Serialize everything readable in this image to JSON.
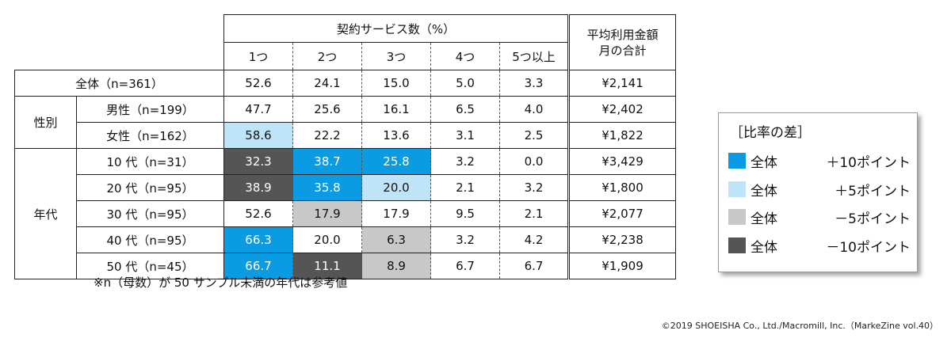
{
  "chart_data": {
    "type": "table",
    "header": {
      "group_title": "契約サービス数（%）",
      "columns": [
        "1つ",
        "2つ",
        "3つ",
        "4つ",
        "5つ以上"
      ],
      "amount_title_1": "平均利用金額",
      "amount_title_2": "月の合計"
    },
    "total_row": {
      "label": "全体（n=361）",
      "values": [
        "52.6",
        "24.1",
        "15.0",
        "5.0",
        "3.3"
      ],
      "amount": "¥2,141"
    },
    "groups": [
      {
        "name": "性別",
        "rows": [
          {
            "label": "男性（n=199）",
            "values": [
              "47.7",
              "25.6",
              "16.1",
              "6.5",
              "4.0"
            ],
            "amount": "¥2,402"
          },
          {
            "label": "女性（n=162）",
            "values": [
              "58.6",
              "22.2",
              "13.6",
              "3.1",
              "2.5"
            ],
            "amount": "¥1,822"
          }
        ]
      },
      {
        "name": "年代",
        "rows": [
          {
            "label": "10 代（n=31）",
            "values": [
              "32.3",
              "38.7",
              "25.8",
              "3.2",
              "0.0"
            ],
            "amount": "¥3,429"
          },
          {
            "label": "20 代（n=95）",
            "values": [
              "38.9",
              "35.8",
              "20.0",
              "2.1",
              "3.2"
            ],
            "amount": "¥1,800"
          },
          {
            "label": "30 代（n=95）",
            "values": [
              "52.6",
              "17.9",
              "17.9",
              "9.5",
              "2.1"
            ],
            "amount": "¥2,077"
          },
          {
            "label": "40 代（n=95）",
            "values": [
              "66.3",
              "20.0",
              "6.3",
              "3.2",
              "4.2"
            ],
            "amount": "¥2,238"
          },
          {
            "label": "50 代（n=45）",
            "values": [
              "66.7",
              "11.1",
              "8.9",
              "6.7",
              "6.7"
            ],
            "amount": "¥1,909"
          }
        ]
      }
    ],
    "highlights": {
      "1.1": [
        [
          "0",
          "plus5"
        ]
      ],
      "2.0": [
        [
          "0",
          "minus10"
        ],
        [
          "1",
          "plus10"
        ],
        [
          "2",
          "plus10"
        ]
      ],
      "2.1": [
        [
          "0",
          "minus10"
        ],
        [
          "1",
          "plus10"
        ],
        [
          "2",
          "plus5"
        ]
      ],
      "2.2": [
        [
          "1",
          "minus5"
        ]
      ],
      "2.3": [
        [
          "0",
          "plus10"
        ],
        [
          "2",
          "minus5"
        ]
      ],
      "2.4": [
        [
          "0",
          "plus10"
        ],
        [
          "1",
          "minus10"
        ],
        [
          "2",
          "minus5"
        ]
      ]
    },
    "legend": {
      "title": "［比率の差］",
      "items": [
        {
          "label": "全体",
          "value": "＋10ポイント",
          "color": "#0b9be3"
        },
        {
          "label": "全体",
          "value": "＋5ポイント",
          "color": "#bfe4f7"
        },
        {
          "label": "全体",
          "value": "－5ポイント",
          "color": "#c8c8c8"
        },
        {
          "label": "全体",
          "value": "－10ポイント",
          "color": "#555555"
        }
      ]
    }
  },
  "note": "※n（母数）が 50 サンプル未満の年代は参考値",
  "copyright": "©2019 SHOEISHA Co., Ltd./Macromill, Inc.（MarkeZine vol.40）"
}
